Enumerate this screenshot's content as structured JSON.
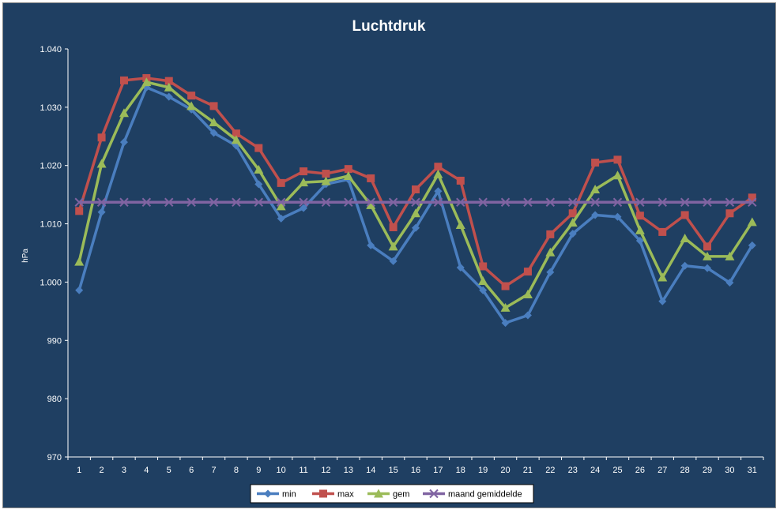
{
  "chart_data": {
    "type": "line",
    "title": "Luchtdruk",
    "xlabel": "",
    "ylabel": "hPa",
    "ylim": [
      970,
      1040
    ],
    "yticks": [
      970,
      980,
      990,
      1000,
      1010,
      1020,
      1030,
      1040
    ],
    "ytick_labels": [
      "970",
      "980",
      "990",
      "1.000",
      "1.010",
      "1.020",
      "1.030",
      "1.040"
    ],
    "categories": [
      "1",
      "2",
      "3",
      "4",
      "5",
      "6",
      "7",
      "8",
      "9",
      "10",
      "11",
      "12",
      "13",
      "14",
      "15",
      "16",
      "17",
      "18",
      "19",
      "20",
      "21",
      "22",
      "23",
      "24",
      "25",
      "26",
      "27",
      "28",
      "29",
      "30",
      "31"
    ],
    "grid": false,
    "legend_position": "bottom",
    "series": [
      {
        "name": "min",
        "color": "#4a7ebf",
        "marker": "diamond",
        "values": [
          998.6,
          1012.0,
          1024.0,
          1033.4,
          1031.8,
          1029.6,
          1025.6,
          1023.4,
          1016.8,
          1010.9,
          1012.7,
          1016.8,
          1017.6,
          1006.3,
          1003.6,
          1009.3,
          1015.6,
          1002.5,
          998.6,
          993.0,
          994.3,
          1001.7,
          1008.3,
          1011.5,
          1011.2,
          1007.1,
          996.7,
          1002.8,
          1002.4,
          999.9,
          1006.3
        ]
      },
      {
        "name": "max",
        "color": "#c0504d",
        "marker": "square",
        "values": [
          1012.2,
          1024.8,
          1034.6,
          1035.0,
          1034.5,
          1032.0,
          1030.2,
          1025.5,
          1023.0,
          1017.0,
          1019.0,
          1018.6,
          1019.4,
          1017.8,
          1009.4,
          1015.9,
          1019.8,
          1017.4,
          1002.7,
          999.3,
          1001.8,
          1008.2,
          1011.8,
          1020.5,
          1021.0,
          1011.4,
          1008.6,
          1011.5,
          1006.1,
          1011.8,
          1014.5
        ]
      },
      {
        "name": "gem",
        "color": "#9bbb59",
        "marker": "triangle",
        "values": [
          1003.5,
          1020.3,
          1029.0,
          1034.3,
          1033.4,
          1030.2,
          1027.4,
          1024.4,
          1019.3,
          1013.0,
          1017.1,
          1017.3,
          1018.2,
          1013.2,
          1006.1,
          1011.8,
          1018.5,
          1009.8,
          1000.2,
          995.6,
          997.9,
          1005.1,
          1010.2,
          1015.9,
          1018.3,
          1008.9,
          1000.8,
          1007.5,
          1004.4,
          1004.4,
          1010.3
        ]
      },
      {
        "name": "maand gemiddelde",
        "color": "#8064a2",
        "marker": "x",
        "values": [
          1013.7,
          1013.7,
          1013.7,
          1013.7,
          1013.7,
          1013.7,
          1013.7,
          1013.7,
          1013.7,
          1013.7,
          1013.7,
          1013.7,
          1013.7,
          1013.7,
          1013.7,
          1013.7,
          1013.7,
          1013.7,
          1013.7,
          1013.7,
          1013.7,
          1013.7,
          1013.7,
          1013.7,
          1013.7,
          1013.7,
          1013.7,
          1013.7,
          1013.7,
          1013.7,
          1013.7
        ]
      }
    ]
  }
}
